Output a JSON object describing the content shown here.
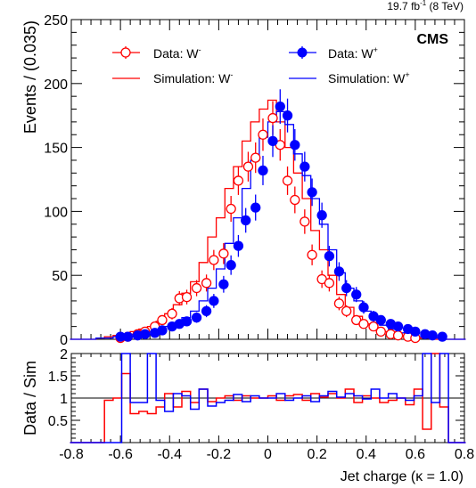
{
  "header": {
    "lumi_text": "19.7 fb",
    "lumi_sup": "-1",
    "energy_text": " (8 TeV)",
    "experiment": "CMS"
  },
  "chart_data": [
    {
      "type": "line",
      "panel": "main",
      "ylabel": "Events / (0.035)",
      "xlabel": "Jet charge (κ = 1.0)",
      "xlim": [
        -0.8,
        0.8
      ],
      "ylim": [
        0,
        250
      ],
      "x_ticks": [
        "-0.8",
        "-0.6",
        "-0.4",
        "-0.2",
        "0",
        "0.2",
        "0.4",
        "0.6",
        "0.8"
      ],
      "y_ticks": [
        "0",
        "50",
        "100",
        "150",
        "200",
        "250"
      ],
      "grid": false,
      "legend_position": "top",
      "legend": {
        "data_minus": "Data: W",
        "data_minus_sup": "-",
        "sim_minus": "Simulation: W",
        "sim_minus_sup": "-",
        "data_plus": "Data: W",
        "data_plus_sup": "+",
        "sim_plus": "Simulation: W",
        "sim_plus_sup": "+"
      },
      "colors": {
        "minus": "#ff0000",
        "plus": "#0000ff"
      },
      "bin_edges": [
        -0.805,
        -0.77,
        -0.735,
        -0.7,
        -0.665,
        -0.63,
        -0.595,
        -0.56,
        -0.525,
        -0.49,
        -0.455,
        -0.42,
        -0.385,
        -0.35,
        -0.315,
        -0.28,
        -0.245,
        -0.21,
        -0.175,
        -0.14,
        -0.105,
        -0.07,
        -0.035,
        0.0,
        0.035,
        0.07,
        0.105,
        0.14,
        0.175,
        0.21,
        0.245,
        0.28,
        0.315,
        0.35,
        0.385,
        0.42,
        0.455,
        0.49,
        0.525,
        0.56,
        0.595,
        0.63,
        0.665,
        0.7,
        0.735,
        0.77,
        0.805
      ],
      "series": [
        {
          "key": "sim_minus",
          "style": "step",
          "color": "#ff0000",
          "values": [
            0,
            0,
            0,
            1,
            2,
            3,
            4,
            6,
            8,
            10,
            14,
            20,
            27,
            36,
            45,
            60,
            80,
            95,
            118,
            135,
            155,
            170,
            180,
            187,
            170,
            150,
            130,
            110,
            85,
            70,
            50,
            35,
            25,
            18,
            12,
            8,
            6,
            4,
            3,
            2,
            1,
            1,
            0,
            0,
            0,
            0
          ]
        },
        {
          "key": "sim_plus",
          "style": "step",
          "color": "#0000ff",
          "values": [
            0,
            0,
            0,
            1,
            1,
            2,
            3,
            4,
            5,
            6,
            8,
            10,
            13,
            17,
            22,
            30,
            40,
            55,
            75,
            95,
            118,
            140,
            158,
            170,
            178,
            168,
            145,
            128,
            110,
            90,
            70,
            52,
            40,
            30,
            22,
            15,
            11,
            8,
            5,
            4,
            2,
            1,
            1,
            0,
            0,
            0
          ]
        },
        {
          "key": "data_minus",
          "style": "points",
          "marker": "open-circle",
          "color": "#ff0000",
          "points": [
            [
              -0.6,
              1
            ],
            [
              -0.57,
              2
            ],
            [
              -0.53,
              4
            ],
            [
              -0.5,
              6
            ],
            [
              -0.46,
              10
            ],
            [
              -0.43,
              15
            ],
            [
              -0.39,
              20
            ],
            [
              -0.36,
              32
            ],
            [
              -0.33,
              33
            ],
            [
              -0.29,
              40
            ],
            [
              -0.25,
              44
            ],
            [
              -0.22,
              62
            ],
            [
              -0.18,
              67
            ],
            [
              -0.15,
              102
            ],
            [
              -0.12,
              124
            ],
            [
              -0.08,
              135
            ],
            [
              -0.05,
              142
            ],
            [
              -0.02,
              160
            ],
            [
              0.02,
              173
            ],
            [
              0.05,
              152
            ],
            [
              0.08,
              124
            ],
            [
              0.11,
              109
            ],
            [
              0.15,
              92
            ],
            [
              0.18,
              66
            ],
            [
              0.22,
              47
            ],
            [
              0.25,
              44
            ],
            [
              0.29,
              28
            ],
            [
              0.32,
              22
            ],
            [
              0.36,
              15
            ],
            [
              0.39,
              12
            ],
            [
              0.43,
              10
            ],
            [
              0.46,
              6
            ],
            [
              0.5,
              4
            ],
            [
              0.53,
              3
            ],
            [
              0.57,
              2
            ],
            [
              0.6,
              1
            ]
          ]
        },
        {
          "key": "data_plus",
          "style": "points",
          "marker": "filled-circle",
          "color": "#0000ff",
          "points": [
            [
              -0.6,
              2
            ],
            [
              -0.57,
              2
            ],
            [
              -0.53,
              3
            ],
            [
              -0.5,
              4
            ],
            [
              -0.46,
              5
            ],
            [
              -0.43,
              7
            ],
            [
              -0.39,
              10
            ],
            [
              -0.36,
              12
            ],
            [
              -0.33,
              14
            ],
            [
              -0.29,
              17
            ],
            [
              -0.25,
              22
            ],
            [
              -0.22,
              30
            ],
            [
              -0.18,
              43
            ],
            [
              -0.15,
              58
            ],
            [
              -0.12,
              73
            ],
            [
              -0.09,
              93
            ],
            [
              -0.05,
              103
            ],
            [
              -0.02,
              132
            ],
            [
              0.02,
              155
            ],
            [
              0.05,
              182
            ],
            [
              0.08,
              175
            ],
            [
              0.11,
              152
            ],
            [
              0.15,
              135
            ],
            [
              0.18,
              115
            ],
            [
              0.22,
              97
            ],
            [
              0.25,
              65
            ],
            [
              0.29,
              53
            ],
            [
              0.32,
              40
            ],
            [
              0.36,
              35
            ],
            [
              0.39,
              25
            ],
            [
              0.43,
              18
            ],
            [
              0.46,
              15
            ],
            [
              0.5,
              12
            ],
            [
              0.53,
              10
            ],
            [
              0.57,
              8
            ],
            [
              0.6,
              6
            ],
            [
              0.64,
              4
            ],
            [
              0.67,
              3
            ],
            [
              0.71,
              2
            ]
          ]
        }
      ]
    },
    {
      "type": "line",
      "panel": "ratio",
      "ylabel": "Data / Sim",
      "xlim": [
        -0.8,
        0.8
      ],
      "ylim": [
        0,
        2
      ],
      "y_ticks": [
        "0.5",
        "1",
        "1.5",
        "2"
      ],
      "reference_line": 1,
      "bin_edges": [
        -0.805,
        -0.77,
        -0.735,
        -0.7,
        -0.665,
        -0.63,
        -0.595,
        -0.56,
        -0.525,
        -0.49,
        -0.455,
        -0.42,
        -0.385,
        -0.35,
        -0.315,
        -0.28,
        -0.245,
        -0.21,
        -0.175,
        -0.14,
        -0.105,
        -0.07,
        -0.035,
        0.0,
        0.035,
        0.07,
        0.105,
        0.14,
        0.175,
        0.21,
        0.245,
        0.28,
        0.315,
        0.35,
        0.385,
        0.42,
        0.455,
        0.49,
        0.525,
        0.56,
        0.595,
        0.63,
        0.665,
        0.7,
        0.735,
        0.77,
        0.805
      ],
      "series": [
        {
          "key": "ratio_minus",
          "style": "step",
          "color": "#ff0000",
          "values": [
            0,
            0,
            0,
            0,
            0.95,
            1.0,
            1.55,
            0.65,
            0.7,
            0.65,
            0.8,
            1.1,
            0.8,
            1.15,
            0.9,
            1.2,
            0.92,
            1.0,
            1.05,
            0.95,
            1.05,
            1.0,
            1.0,
            1.05,
            0.95,
            1.05,
            1.08,
            0.95,
            1.1,
            1.02,
            1.1,
            1.0,
            1.2,
            0.9,
            1.05,
            1.0,
            0.9,
            0.95,
            1.0,
            0.85,
            1.2,
            0.3,
            2.1,
            0.8,
            0,
            0
          ]
        },
        {
          "key": "ratio_plus",
          "style": "step",
          "color": "#0000ff",
          "values": [
            0,
            0,
            0,
            0,
            0,
            0,
            2.1,
            0.9,
            0.9,
            2.1,
            0.95,
            0.7,
            1.1,
            1.05,
            0.75,
            1.2,
            0.82,
            0.9,
            0.95,
            1.08,
            0.92,
            1.05,
            1.0,
            1.0,
            1.1,
            0.95,
            1.0,
            1.05,
            0.92,
            1.05,
            1.15,
            1.02,
            1.1,
            1.05,
            0.98,
            1.2,
            1.0,
            1.1,
            1.0,
            0.95,
            1.05,
            2.1,
            0.9,
            2.1,
            0,
            0
          ]
        }
      ]
    }
  ]
}
